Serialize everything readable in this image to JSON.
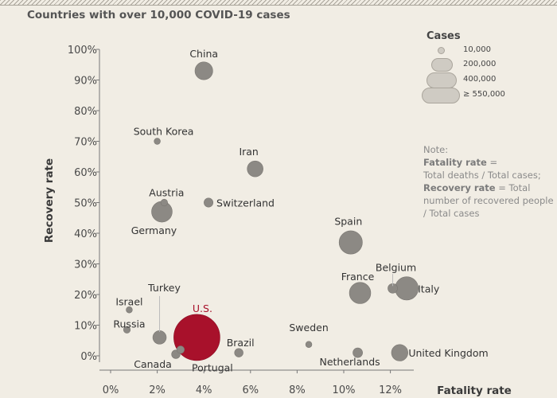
{
  "subtitle": "Countries with over 10,000 COVID-19 cases",
  "legend": {
    "title": "Cases",
    "items": [
      "10,000",
      "200,000",
      "400,000",
      "≥ 550,000"
    ]
  },
  "note": {
    "heading": "Note:",
    "fatality_term": "Fatality rate",
    "fatality_def_a": " =",
    "fatality_def_b": "Total deaths / Total cases;",
    "recovery_term": "Recovery rate",
    "recovery_def": " = Total number of recovered people / Total cases"
  },
  "colors": {
    "bubble": "#8c8984",
    "highlight": "#a8112b",
    "background": "#f1ede4"
  },
  "chart_data": {
    "type": "scatter",
    "title": "Countries with over 10,000 COVID-19 cases",
    "xlabel": "Fatality rate",
    "ylabel": "Recovery rate",
    "xlim": [
      0,
      13
    ],
    "ylim": [
      0,
      100
    ],
    "x_ticks": [
      "0%",
      "2%",
      "4%",
      "6%",
      "8%",
      "10%",
      "12%"
    ],
    "y_ticks": [
      "0%",
      "10%",
      "20%",
      "30%",
      "40%",
      "50%",
      "60%",
      "70%",
      "80%",
      "90%",
      "100%"
    ],
    "points": [
      {
        "name": "China",
        "x": 4.0,
        "y": 93,
        "cases": 82000
      },
      {
        "name": "South Korea",
        "x": 2.0,
        "y": 70,
        "cases": 10000
      },
      {
        "name": "Iran",
        "x": 6.2,
        "y": 61,
        "cases": 65000
      },
      {
        "name": "Austria",
        "x": 2.3,
        "y": 50,
        "cases": 12000
      },
      {
        "name": "Switzerland",
        "x": 4.2,
        "y": 50,
        "cases": 21000
      },
      {
        "name": "Germany",
        "x": 2.2,
        "y": 47,
        "cases": 110000
      },
      {
        "name": "Spain",
        "x": 10.3,
        "y": 37,
        "cases": 140000
      },
      {
        "name": "Belgium",
        "x": 12.1,
        "y": 22,
        "cases": 24000
      },
      {
        "name": "France",
        "x": 10.7,
        "y": 20.5,
        "cases": 118000
      },
      {
        "name": "Italy",
        "x": 12.7,
        "y": 22,
        "cases": 140000
      },
      {
        "name": "Turkey",
        "x": 2.1,
        "y": 6,
        "cases": 47000
      },
      {
        "name": "Israel",
        "x": 0.8,
        "y": 15,
        "cases": 10000
      },
      {
        "name": "Russia",
        "x": 0.7,
        "y": 8.5,
        "cases": 12000
      },
      {
        "name": "U.S.",
        "x": 3.7,
        "y": 6,
        "cases": 550000
      },
      {
        "name": "Canada",
        "x": 2.8,
        "y": 0.5,
        "cases": 19000
      },
      {
        "name": "Portugal",
        "x": 3.0,
        "y": 2,
        "cases": 15000
      },
      {
        "name": "Brazil",
        "x": 5.5,
        "y": 1,
        "cases": 19000
      },
      {
        "name": "Sweden",
        "x": 8.5,
        "y": 3.7,
        "cases": 10000
      },
      {
        "name": "Netherlands",
        "x": 10.6,
        "y": 1,
        "cases": 24000
      },
      {
        "name": "United Kingdom",
        "x": 12.4,
        "y": 1,
        "cases": 70000
      }
    ]
  }
}
